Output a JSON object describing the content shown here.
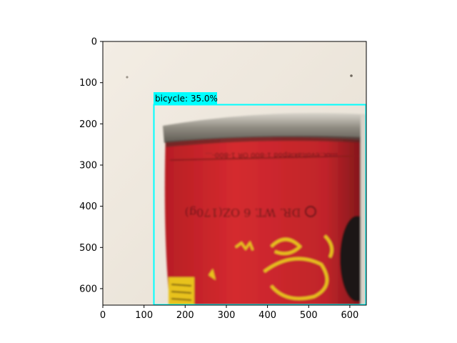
{
  "plot": {
    "x_ticks": [
      "0",
      "100",
      "200",
      "300",
      "400",
      "500",
      "600"
    ],
    "y_ticks": [
      "0",
      "100",
      "200",
      "300",
      "400",
      "500",
      "600"
    ]
  },
  "image": {
    "description_colors": {
      "wall": "#efe9df",
      "can_red": "#c8232a",
      "can_rim": "#8e8a80",
      "lettering": "#5a1515",
      "yellow_graphic": "#e8c21c"
    },
    "can_text": {
      "band": "moc.evoltaklepod 1-800 OR 1-800-...",
      "weight": "DR. WT. 6 OZ(170g)"
    }
  },
  "detection": {
    "label_text": "bicycle: 35.0%",
    "box_color": "#00ffff"
  }
}
